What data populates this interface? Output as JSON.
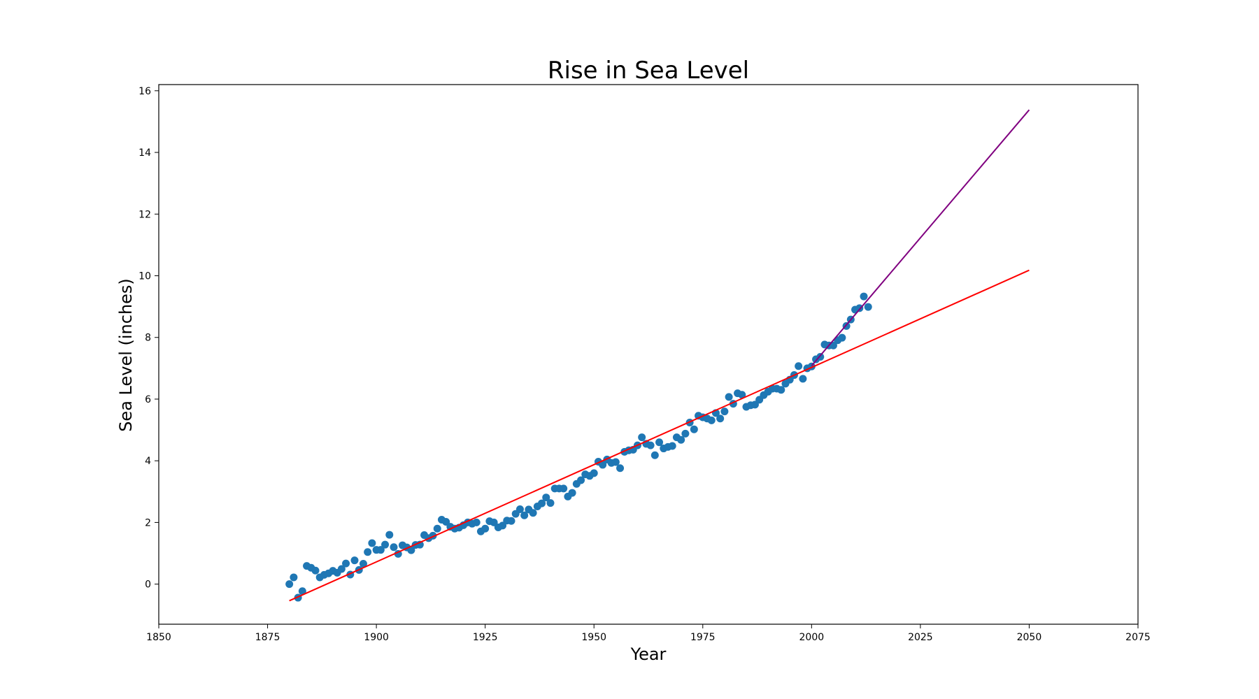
{
  "chart_data": {
    "type": "scatter",
    "title": "Rise in Sea Level",
    "xlabel": "Year",
    "ylabel": "Sea Level (inches)",
    "xlim": [
      1850,
      2075
    ],
    "ylim": [
      -1.3,
      16.2
    ],
    "grid": false,
    "x_ticks": [
      1850,
      1875,
      1900,
      1925,
      1950,
      1975,
      2000,
      2025,
      2050,
      2075
    ],
    "y_ticks": [
      0,
      2,
      4,
      6,
      8,
      10,
      12,
      14,
      16
    ],
    "colors": {
      "points": "#1f77b4",
      "fit_all": "#ff0000",
      "fit_recent": "#800080"
    },
    "points": [
      [
        1880,
        0.0
      ],
      [
        1881,
        0.22
      ],
      [
        1882,
        -0.44
      ],
      [
        1883,
        -0.23
      ],
      [
        1884,
        0.59
      ],
      [
        1885,
        0.53
      ],
      [
        1886,
        0.44
      ],
      [
        1887,
        0.22
      ],
      [
        1888,
        0.3
      ],
      [
        1889,
        0.35
      ],
      [
        1890,
        0.43
      ],
      [
        1891,
        0.37
      ],
      [
        1892,
        0.49
      ],
      [
        1893,
        0.67
      ],
      [
        1894,
        0.31
      ],
      [
        1895,
        0.77
      ],
      [
        1896,
        0.46
      ],
      [
        1897,
        0.66
      ],
      [
        1898,
        1.04
      ],
      [
        1899,
        1.33
      ],
      [
        1900,
        1.11
      ],
      [
        1901,
        1.11
      ],
      [
        1902,
        1.28
      ],
      [
        1903,
        1.6
      ],
      [
        1904,
        1.2
      ],
      [
        1905,
        0.98
      ],
      [
        1906,
        1.26
      ],
      [
        1907,
        1.19
      ],
      [
        1908,
        1.1
      ],
      [
        1909,
        1.27
      ],
      [
        1910,
        1.28
      ],
      [
        1911,
        1.59
      ],
      [
        1912,
        1.49
      ],
      [
        1913,
        1.57
      ],
      [
        1914,
        1.8
      ],
      [
        1915,
        2.09
      ],
      [
        1916,
        2.02
      ],
      [
        1917,
        1.86
      ],
      [
        1918,
        1.8
      ],
      [
        1919,
        1.83
      ],
      [
        1920,
        1.91
      ],
      [
        1921,
        2.0
      ],
      [
        1922,
        1.96
      ],
      [
        1923,
        2.0
      ],
      [
        1924,
        1.71
      ],
      [
        1925,
        1.8
      ],
      [
        1926,
        2.04
      ],
      [
        1927,
        2.0
      ],
      [
        1928,
        1.84
      ],
      [
        1929,
        1.9
      ],
      [
        1930,
        2.06
      ],
      [
        1931,
        2.05
      ],
      [
        1932,
        2.28
      ],
      [
        1933,
        2.43
      ],
      [
        1934,
        2.23
      ],
      [
        1935,
        2.42
      ],
      [
        1936,
        2.31
      ],
      [
        1937,
        2.52
      ],
      [
        1938,
        2.62
      ],
      [
        1939,
        2.81
      ],
      [
        1940,
        2.63
      ],
      [
        1941,
        3.1
      ],
      [
        1942,
        3.1
      ],
      [
        1943,
        3.1
      ],
      [
        1944,
        2.84
      ],
      [
        1945,
        2.96
      ],
      [
        1946,
        3.25
      ],
      [
        1947,
        3.37
      ],
      [
        1948,
        3.56
      ],
      [
        1949,
        3.51
      ],
      [
        1950,
        3.6
      ],
      [
        1951,
        3.97
      ],
      [
        1952,
        3.87
      ],
      [
        1953,
        4.04
      ],
      [
        1954,
        3.93
      ],
      [
        1955,
        3.96
      ],
      [
        1956,
        3.76
      ],
      [
        1957,
        4.29
      ],
      [
        1958,
        4.34
      ],
      [
        1959,
        4.36
      ],
      [
        1960,
        4.5
      ],
      [
        1961,
        4.76
      ],
      [
        1962,
        4.55
      ],
      [
        1963,
        4.5
      ],
      [
        1964,
        4.18
      ],
      [
        1965,
        4.6
      ],
      [
        1966,
        4.4
      ],
      [
        1967,
        4.45
      ],
      [
        1968,
        4.48
      ],
      [
        1969,
        4.76
      ],
      [
        1970,
        4.68
      ],
      [
        1971,
        4.88
      ],
      [
        1972,
        5.24
      ],
      [
        1973,
        5.02
      ],
      [
        1974,
        5.46
      ],
      [
        1975,
        5.41
      ],
      [
        1976,
        5.37
      ],
      [
        1977,
        5.31
      ],
      [
        1978,
        5.55
      ],
      [
        1979,
        5.37
      ],
      [
        1980,
        5.6
      ],
      [
        1981,
        6.07
      ],
      [
        1982,
        5.85
      ],
      [
        1983,
        6.19
      ],
      [
        1984,
        6.14
      ],
      [
        1985,
        5.75
      ],
      [
        1986,
        5.8
      ],
      [
        1987,
        5.82
      ],
      [
        1988,
        5.98
      ],
      [
        1989,
        6.13
      ],
      [
        1990,
        6.24
      ],
      [
        1991,
        6.34
      ],
      [
        1992,
        6.34
      ],
      [
        1993,
        6.3
      ],
      [
        1994,
        6.5
      ],
      [
        1995,
        6.63
      ],
      [
        1996,
        6.78
      ],
      [
        1997,
        7.07
      ],
      [
        1998,
        6.66
      ],
      [
        1999,
        7.0
      ],
      [
        2000,
        7.06
      ],
      [
        2001,
        7.29
      ],
      [
        2002,
        7.37
      ],
      [
        2003,
        7.77
      ],
      [
        2004,
        7.74
      ],
      [
        2005,
        7.74
      ],
      [
        2006,
        7.91
      ],
      [
        2007,
        7.99
      ],
      [
        2008,
        8.37
      ],
      [
        2009,
        8.58
      ],
      [
        2010,
        8.9
      ],
      [
        2011,
        8.95
      ],
      [
        2012,
        9.33
      ],
      [
        2013,
        8.99
      ]
    ],
    "fit_lines": [
      {
        "x": [
          1880,
          2050
        ],
        "y": [
          -0.54,
          10.18
        ]
      },
      {
        "x": [
          2000,
          2050
        ],
        "y": [
          7.08,
          15.38
        ]
      }
    ]
  }
}
